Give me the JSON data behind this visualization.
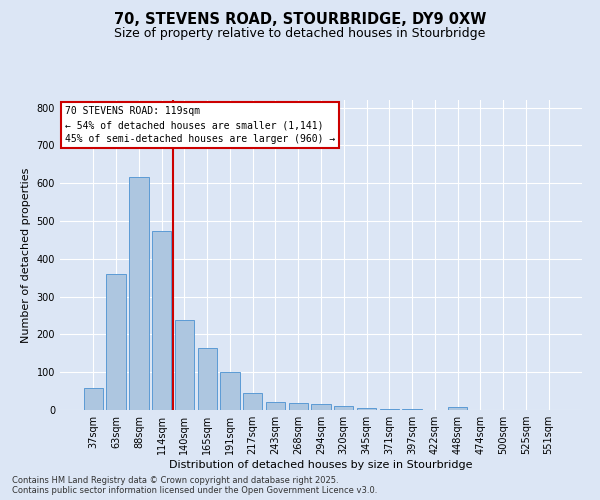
{
  "title_line1": "70, STEVENS ROAD, STOURBRIDGE, DY9 0XW",
  "title_line2": "Size of property relative to detached houses in Stourbridge",
  "xlabel": "Distribution of detached houses by size in Stourbridge",
  "ylabel": "Number of detached properties",
  "categories": [
    "37sqm",
    "63sqm",
    "88sqm",
    "114sqm",
    "140sqm",
    "165sqm",
    "191sqm",
    "217sqm",
    "243sqm",
    "268sqm",
    "294sqm",
    "320sqm",
    "345sqm",
    "371sqm",
    "397sqm",
    "422sqm",
    "448sqm",
    "474sqm",
    "500sqm",
    "525sqm",
    "551sqm"
  ],
  "values": [
    58,
    360,
    617,
    474,
    238,
    163,
    100,
    45,
    20,
    18,
    15,
    11,
    5,
    3,
    2,
    1,
    8,
    1,
    1,
    1,
    1
  ],
  "bar_color": "#adc6e0",
  "bar_edge_color": "#5b9bd5",
  "background_color": "#dce6f5",
  "grid_color": "#ffffff",
  "vline_x": 3.5,
  "vline_color": "#cc0000",
  "annotation_text": "70 STEVENS ROAD: 119sqm\n← 54% of detached houses are smaller (1,141)\n45% of semi-detached houses are larger (960) →",
  "annotation_box_color": "#cc0000",
  "ylim": [
    0,
    820
  ],
  "yticks": [
    0,
    100,
    200,
    300,
    400,
    500,
    600,
    700,
    800
  ],
  "title_fontsize": 10.5,
  "subtitle_fontsize": 9,
  "axis_label_fontsize": 8,
  "tick_fontsize": 7,
  "annotation_fontsize": 7,
  "footnote_fontsize": 6,
  "footnote": "Contains HM Land Registry data © Crown copyright and database right 2025.\nContains public sector information licensed under the Open Government Licence v3.0."
}
